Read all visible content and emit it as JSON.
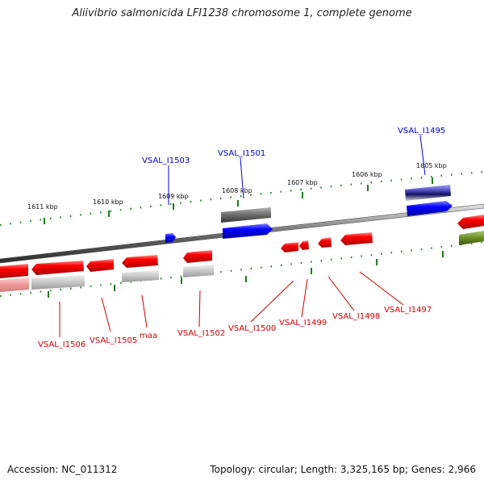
{
  "title": "Aliivibrio salmonicida LFI1238 chromosome 1, complete genome",
  "accession": "Accession: NC_011312",
  "summary": "Topology: circular; Length: 3,325,165 bp; Genes: 2,966",
  "colors": {
    "forward_gene": "#0000ff",
    "forward_gene_dark": "#000080",
    "reverse_gene": "#ff0000",
    "reverse_shadow": "#f0a0a0",
    "grey_feature": "#707070",
    "light_grey_feature": "#c0c0c0",
    "olive_feature": "#6b8e23",
    "backbone": "#808080",
    "tick_green": "#006400",
    "forward_label": "#0000cc",
    "reverse_label": "#cc0000"
  },
  "kbp_labels": [
    "1611 kbp",
    "1610 kbp",
    "1609 kbp",
    "1608 kbp",
    "1607 kbp",
    "1606 kbp",
    "1605 kbp"
  ],
  "forward_labels": [
    "VSAL_I1503",
    "VSAL_I1501",
    "VSAL_I1495"
  ],
  "reverse_labels": [
    "VSAL_I1506",
    "VSAL_I1505",
    "maa",
    "VSAL_I1502",
    "VSAL_I1500",
    "VSAL_I1499",
    "VSAL_I1498",
    "VSAL_I1497"
  ]
}
